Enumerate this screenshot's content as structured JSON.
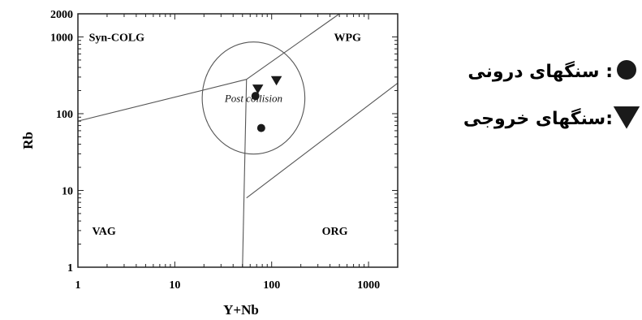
{
  "chart_data": {
    "type": "scatter",
    "title": "",
    "xlabel": "Y+Nb",
    "ylabel": "Rb",
    "x_scale": "log",
    "y_scale": "log",
    "xlim": [
      1,
      2000
    ],
    "ylim": [
      1,
      2000
    ],
    "x_ticks": [
      {
        "value": 1,
        "label": "1"
      },
      {
        "value": 10,
        "label": "10"
      },
      {
        "value": 100,
        "label": "100"
      },
      {
        "value": 1000,
        "label": "1000"
      }
    ],
    "y_ticks": [
      {
        "value": 1,
        "label": "1"
      },
      {
        "value": 10,
        "label": "10"
      },
      {
        "value": 100,
        "label": "100"
      },
      {
        "value": 1000,
        "label": "1000"
      },
      {
        "value": 2000,
        "label": "2000"
      }
    ],
    "regions": [
      {
        "label": "Syn-COLG",
        "x": 1.3,
        "y": 1000
      },
      {
        "label": "WPG",
        "x": 440,
        "y": 1000
      },
      {
        "label": "VAG",
        "x": 1.4,
        "y": 3
      },
      {
        "label": "ORG",
        "x": 330,
        "y": 3
      }
    ],
    "boundaries": [
      [
        [
          1,
          80
        ],
        [
          55,
          280
        ]
      ],
      [
        [
          55,
          280
        ],
        [
          500,
          2000
        ]
      ],
      [
        [
          55,
          280
        ],
        [
          50,
          1
        ]
      ],
      [
        [
          55,
          8
        ],
        [
          2000,
          250
        ]
      ]
    ],
    "annotation": {
      "label": "Post collision",
      "cx": 65,
      "cy": 160,
      "rx_decades": 0.53,
      "ry_decades": 0.73
    },
    "series": [
      {
        "marker": "circle",
        "points": [
          [
            68,
            170
          ],
          [
            78,
            65
          ]
        ]
      },
      {
        "marker": "triangle-down",
        "points": [
          [
            72,
            210
          ],
          [
            112,
            270
          ]
        ]
      }
    ],
    "legend": {
      "position": "right",
      "entries": [
        {
          "marker": "circle",
          "label": ": سنگهای درونی"
        },
        {
          "marker": "triangle-down",
          "label": ":سنگهای خروجی"
        }
      ]
    }
  }
}
